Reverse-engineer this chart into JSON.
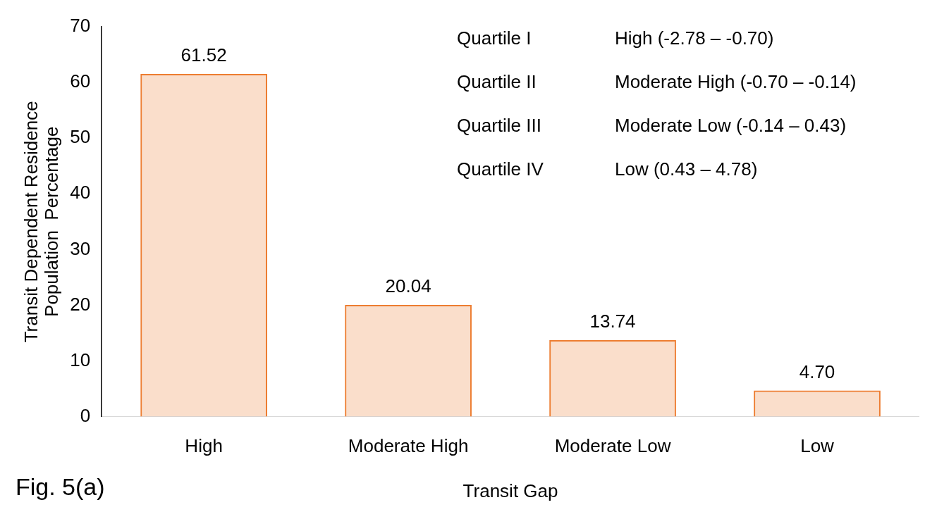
{
  "chart_data": {
    "type": "bar",
    "categories": [
      "High",
      "Moderate High",
      "Moderate Low",
      "Low"
    ],
    "values": [
      61.52,
      20.04,
      13.74,
      4.7
    ],
    "value_labels": [
      "61.52",
      "20.04",
      "13.74",
      "4.70"
    ],
    "color": "#ed7d31",
    "xlabel": "Transit Gap",
    "ylabel": "Transit Dependent Residence\nPopulation  Percentage",
    "ylim": [
      0,
      70
    ],
    "yticks": [
      0,
      10,
      20,
      30,
      40,
      50,
      60,
      70
    ],
    "grid": false,
    "legend": false,
    "annotations": [
      "Quartile I",
      "High (-2.78 – -0.70)",
      "Quartile II",
      "Moderate High (-0.70 – -0.14)",
      "Quartile III",
      "Moderate Low (-0.14 – 0.43)",
      "Quartile IV",
      "Low (0.43 – 4.78)",
      "Fig. 5(a)"
    ]
  }
}
